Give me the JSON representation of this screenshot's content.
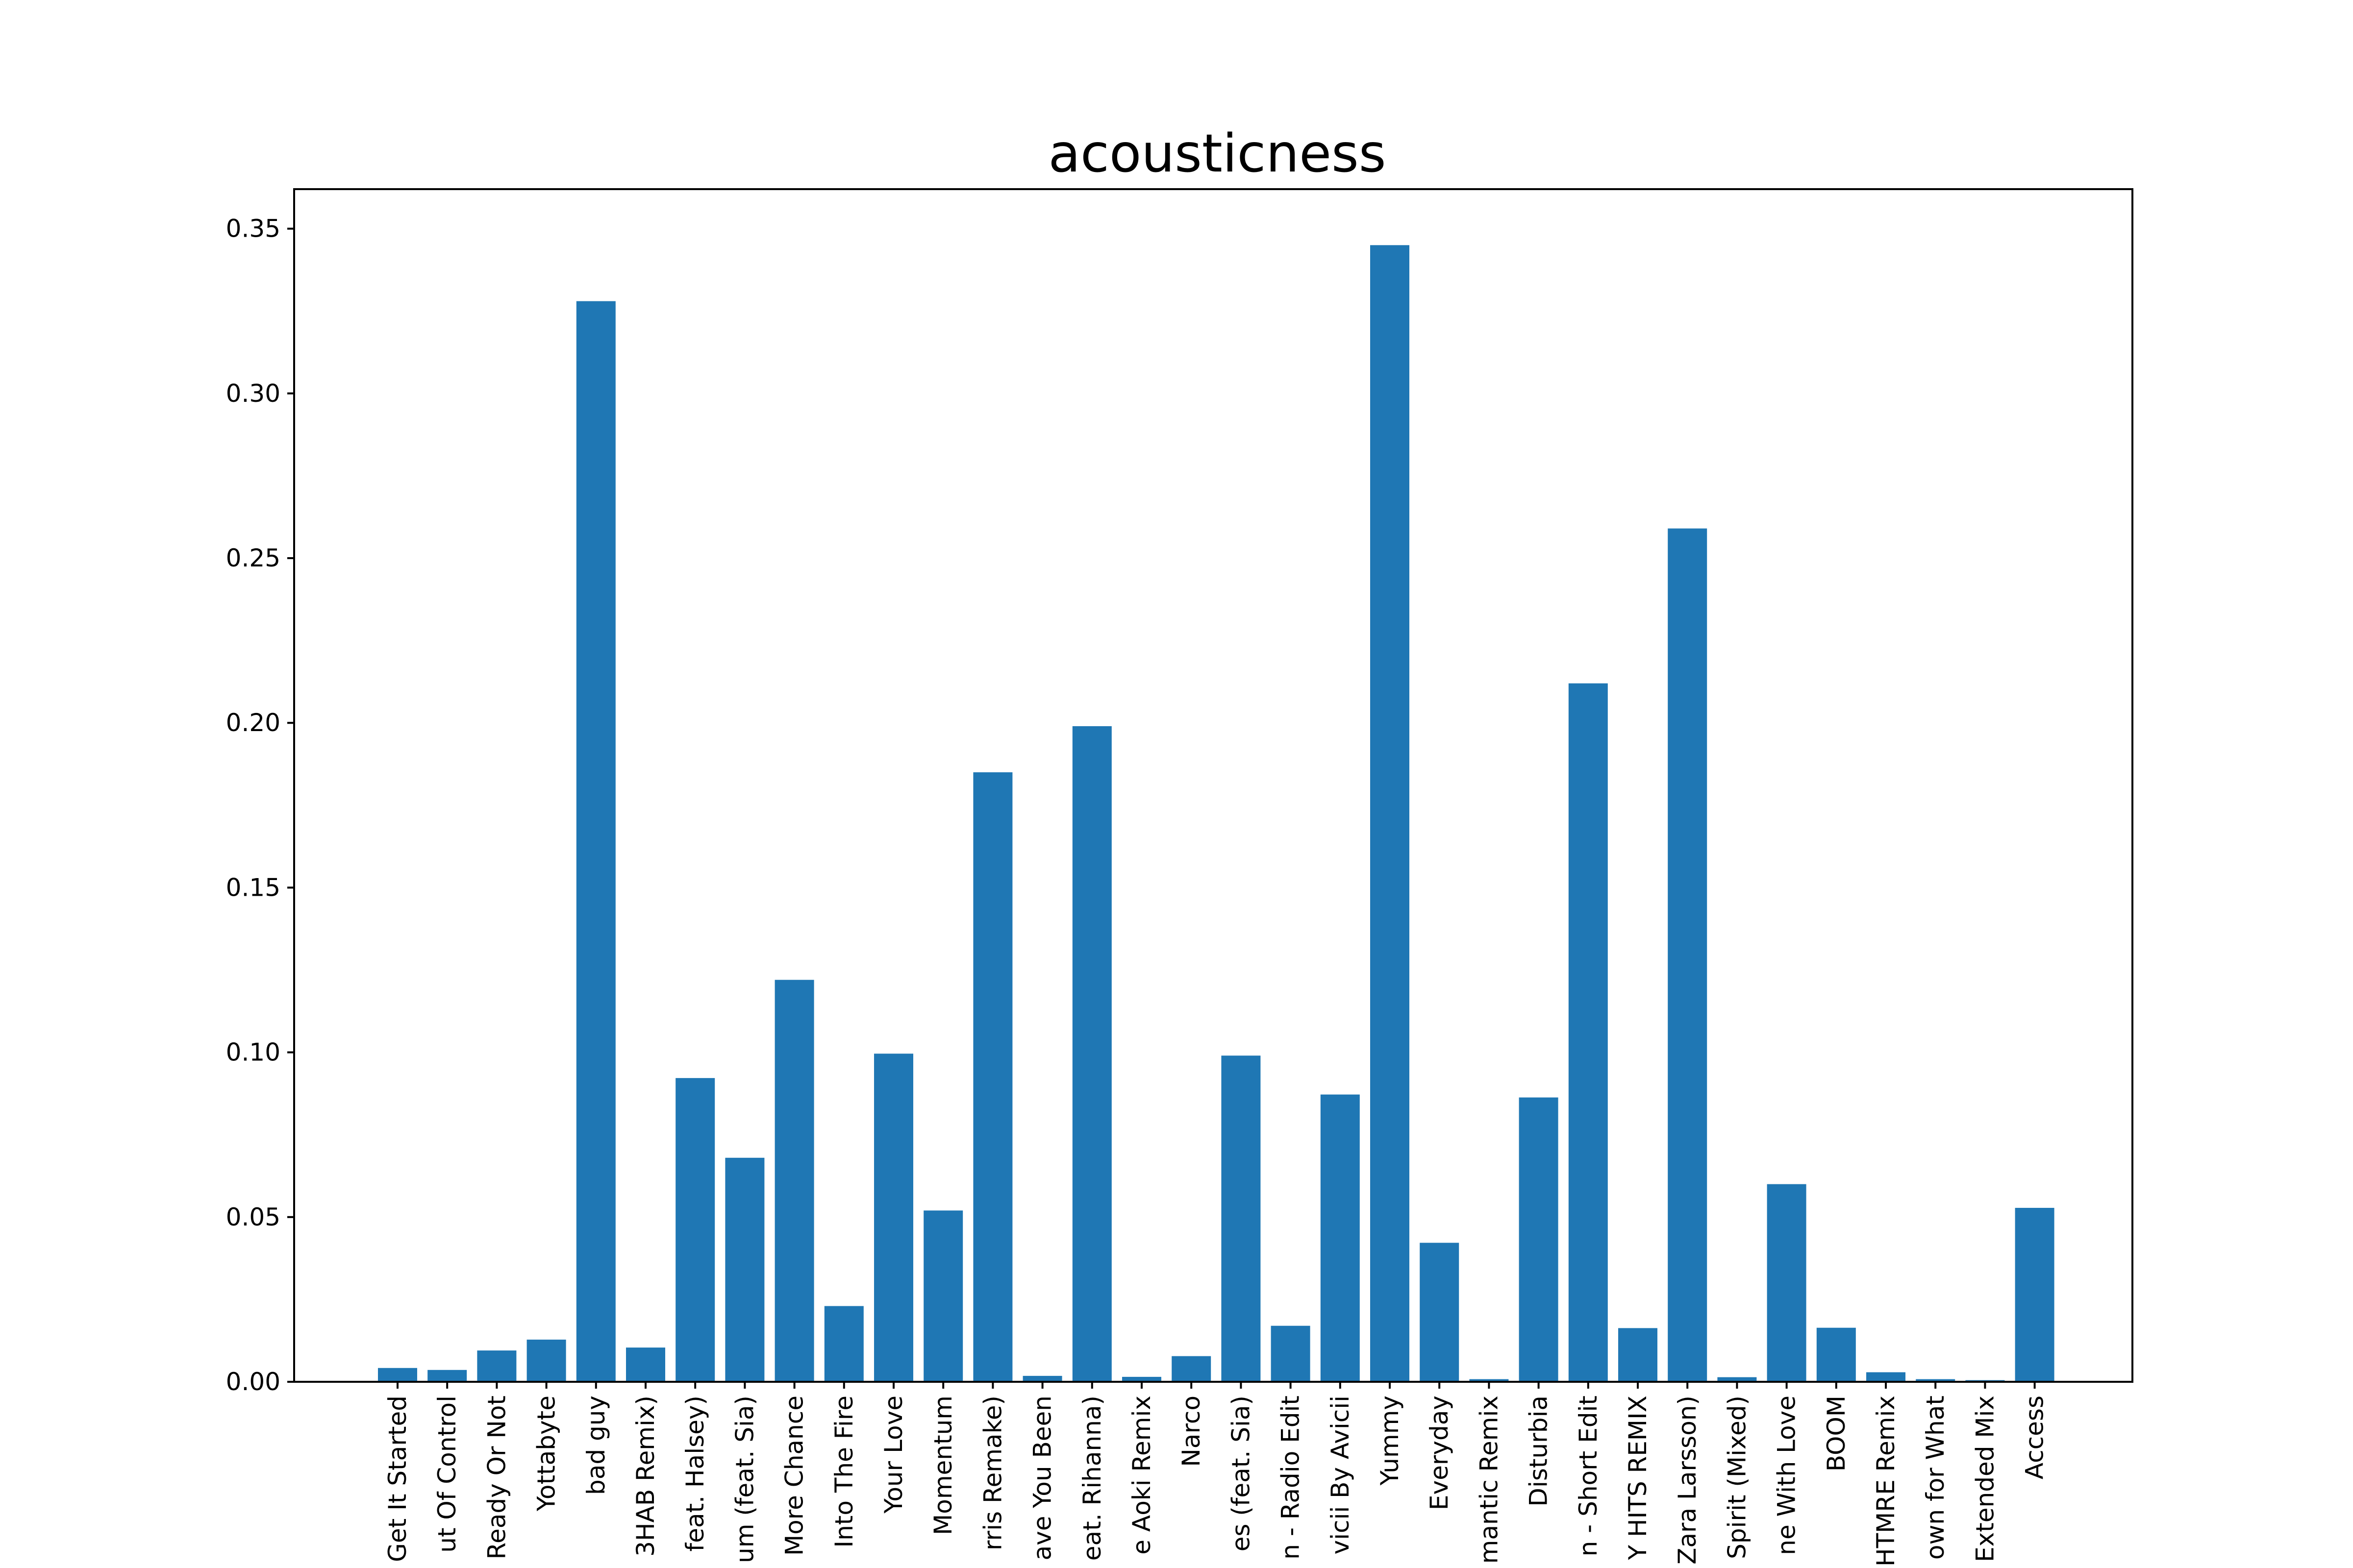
{
  "chart_data": {
    "type": "bar",
    "title": "acousticness",
    "xlabel": "",
    "ylabel": "",
    "ylim": [
      0,
      0.362
    ],
    "yticks": [
      0.0,
      0.05,
      0.1,
      0.15,
      0.2,
      0.25,
      0.3,
      0.35
    ],
    "ytick_labels": [
      "0.00",
      "0.05",
      "0.10",
      "0.15",
      "0.20",
      "0.25",
      "0.30",
      "0.35"
    ],
    "grid": false,
    "bar_color": "#1f77b4",
    "categories": [
      "Get It Started",
      "ut Of Control",
      "Ready Or Not",
      "Yottabyte",
      "bad guy",
      "3HAB Remix)",
      "feat. Halsey)",
      "um (feat. Sia)",
      "More Chance",
      "Into The Fire",
      "Your Love",
      "Momentum",
      "rris Remake)",
      "ave You Been",
      "eat. Rihanna)",
      "e Aoki Remix",
      "Narco",
      "es (feat. Sia)",
      "n - Radio Edit",
      "vicii By Avicii",
      "Yummy",
      "Everyday",
      "mantic Remix",
      "Disturbia",
      "n - Short Edit",
      "Y HITS REMIX",
      "Zara Larsson)",
      "Spirit (Mixed)",
      "ne With Love",
      "BOOM",
      "HTMRE Remix",
      "own for What",
      "Extended Mix",
      "Access"
    ],
    "values": [
      0.0042,
      0.0036,
      0.0095,
      0.0128,
      0.328,
      0.0104,
      0.0922,
      0.068,
      0.122,
      0.023,
      0.0996,
      0.052,
      0.185,
      0.0018,
      0.199,
      0.0015,
      0.0078,
      0.099,
      0.017,
      0.0872,
      0.345,
      0.0422,
      0.0008,
      0.0863,
      0.212,
      0.0163,
      0.259,
      0.0014,
      0.06,
      0.0164,
      0.0029,
      0.0008,
      0.0005,
      0.0528
    ]
  }
}
